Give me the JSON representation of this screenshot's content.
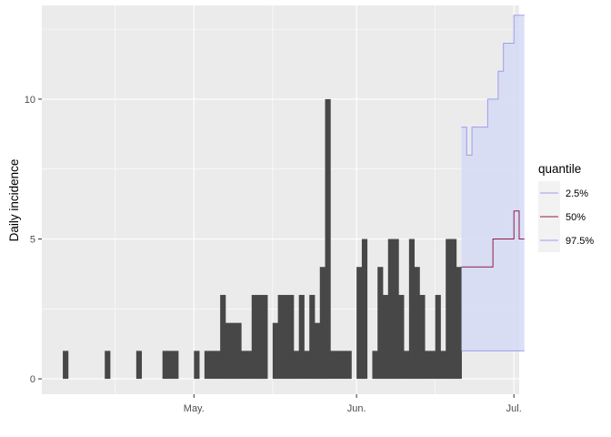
{
  "chart_data": {
    "type": "bar",
    "title": "",
    "xlabel": "",
    "ylabel": "Daily incidence",
    "x_domain": [
      "2020-04-02",
      "2020-07-02"
    ],
    "ylim": [
      -0.55,
      13.35
    ],
    "grid": true,
    "y_ticks": [
      {
        "value": 0,
        "label": "0"
      },
      {
        "value": 5,
        "label": "5"
      },
      {
        "value": 10,
        "label": "10"
      }
    ],
    "y_minor_ticks": [
      2.5,
      7.5,
      12.5
    ],
    "x_ticks": [
      {
        "date": "2020-05-01",
        "label": "May."
      },
      {
        "date": "2020-06-01",
        "label": "Jun."
      },
      {
        "date": "2020-07-01",
        "label": "Jul."
      }
    ],
    "x_minor_ticks": [
      "2020-04-16",
      "2020-05-16",
      "2020-06-16"
    ],
    "observed": {
      "start_date": "2020-04-06",
      "values": [
        1,
        0,
        0,
        0,
        0,
        0,
        0,
        0,
        1,
        0,
        0,
        0,
        0,
        0,
        1,
        0,
        0,
        0,
        0,
        1,
        1,
        1,
        0,
        0,
        0,
        1,
        0,
        1,
        1,
        1,
        3,
        2,
        2,
        2,
        1,
        1,
        3,
        3,
        3,
        0,
        2,
        3,
        3,
        3,
        1,
        3,
        1,
        3,
        2,
        4,
        10,
        1,
        1,
        1,
        1,
        0,
        4,
        5,
        0,
        1,
        4,
        3,
        5,
        5,
        3,
        1,
        5,
        4,
        3,
        1,
        1,
        3,
        1,
        5,
        5,
        4
      ],
      "color": "#474747"
    },
    "forecast": {
      "dates": [
        "2020-06-21",
        "2020-06-22",
        "2020-06-23",
        "2020-06-24",
        "2020-06-25",
        "2020-06-26",
        "2020-06-27",
        "2020-06-28",
        "2020-06-29",
        "2020-06-30",
        "2020-07-01",
        "2020-07-02"
      ],
      "q2_5": [
        1,
        1,
        1,
        1,
        1,
        1,
        1,
        1,
        1,
        1,
        1,
        1
      ],
      "q50": [
        4,
        4,
        4,
        4,
        4,
        4,
        5,
        5,
        5,
        5,
        6,
        5
      ],
      "q97_5": [
        9,
        8,
        9,
        9,
        9,
        10,
        10,
        11,
        12,
        12,
        13,
        13
      ]
    },
    "legend": {
      "title": "quantile",
      "position": "right",
      "entries": [
        {
          "label": "2.5%",
          "color": "#9c9cf0"
        },
        {
          "label": "50%",
          "color": "#8b1c4a"
        },
        {
          "label": "97.5%",
          "color": "#9c9cf0"
        }
      ]
    },
    "colors": {
      "panel": "#ebebeb",
      "grid": "#ffffff",
      "ribbon": "#d6dbf5",
      "bars": "#474747",
      "q_outer": "#9c9cf0",
      "q_median": "#8b1c4a"
    }
  }
}
